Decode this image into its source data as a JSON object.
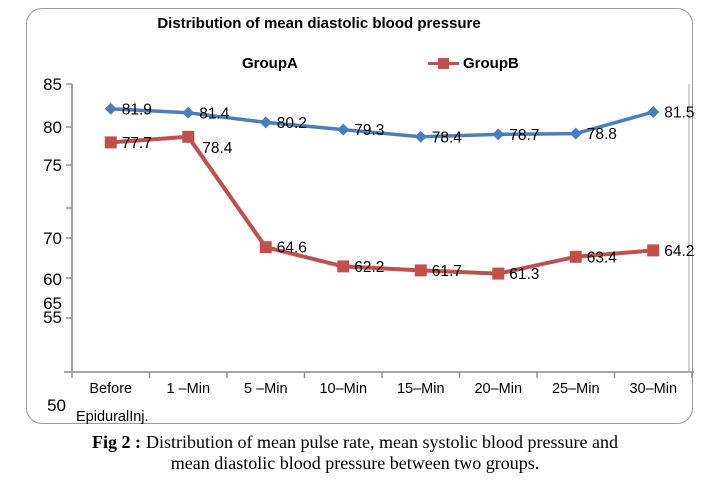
{
  "chart_data": {
    "type": "line",
    "title": "Distribution of mean diastolic blood pressure",
    "categories": [
      "Before",
      "1 –Min",
      "5 –Min",
      "10–Min",
      "15–Min",
      "20–Min",
      "25–Min",
      "30–Min"
    ],
    "x_axis_footnote": "EpiduralInj.",
    "y_tick_labels": [
      "85",
      "80",
      "75",
      "70",
      "60",
      "65",
      "55"
    ],
    "y_floating_label": "50",
    "ylim": [
      50,
      85
    ],
    "grid": false,
    "legend_position": "top-center",
    "series": [
      {
        "name": "GroupA",
        "color": "#4A7EBB",
        "marker": "diamond",
        "values": [
          81.9,
          81.4,
          80.2,
          79.3,
          78.4,
          78.7,
          78.8,
          81.5
        ]
      },
      {
        "name": "GroupB",
        "color": "#C0504D",
        "marker": "square",
        "values": [
          77.7,
          78.4,
          64.6,
          62.2,
          61.7,
          61.3,
          63.4,
          64.2
        ]
      }
    ]
  },
  "caption": {
    "label": "Fig 2 :",
    "line1": "Distribution of mean pulse rate, mean systolic blood pressure and",
    "line2": "mean diastolic blood pressure between two groups."
  }
}
